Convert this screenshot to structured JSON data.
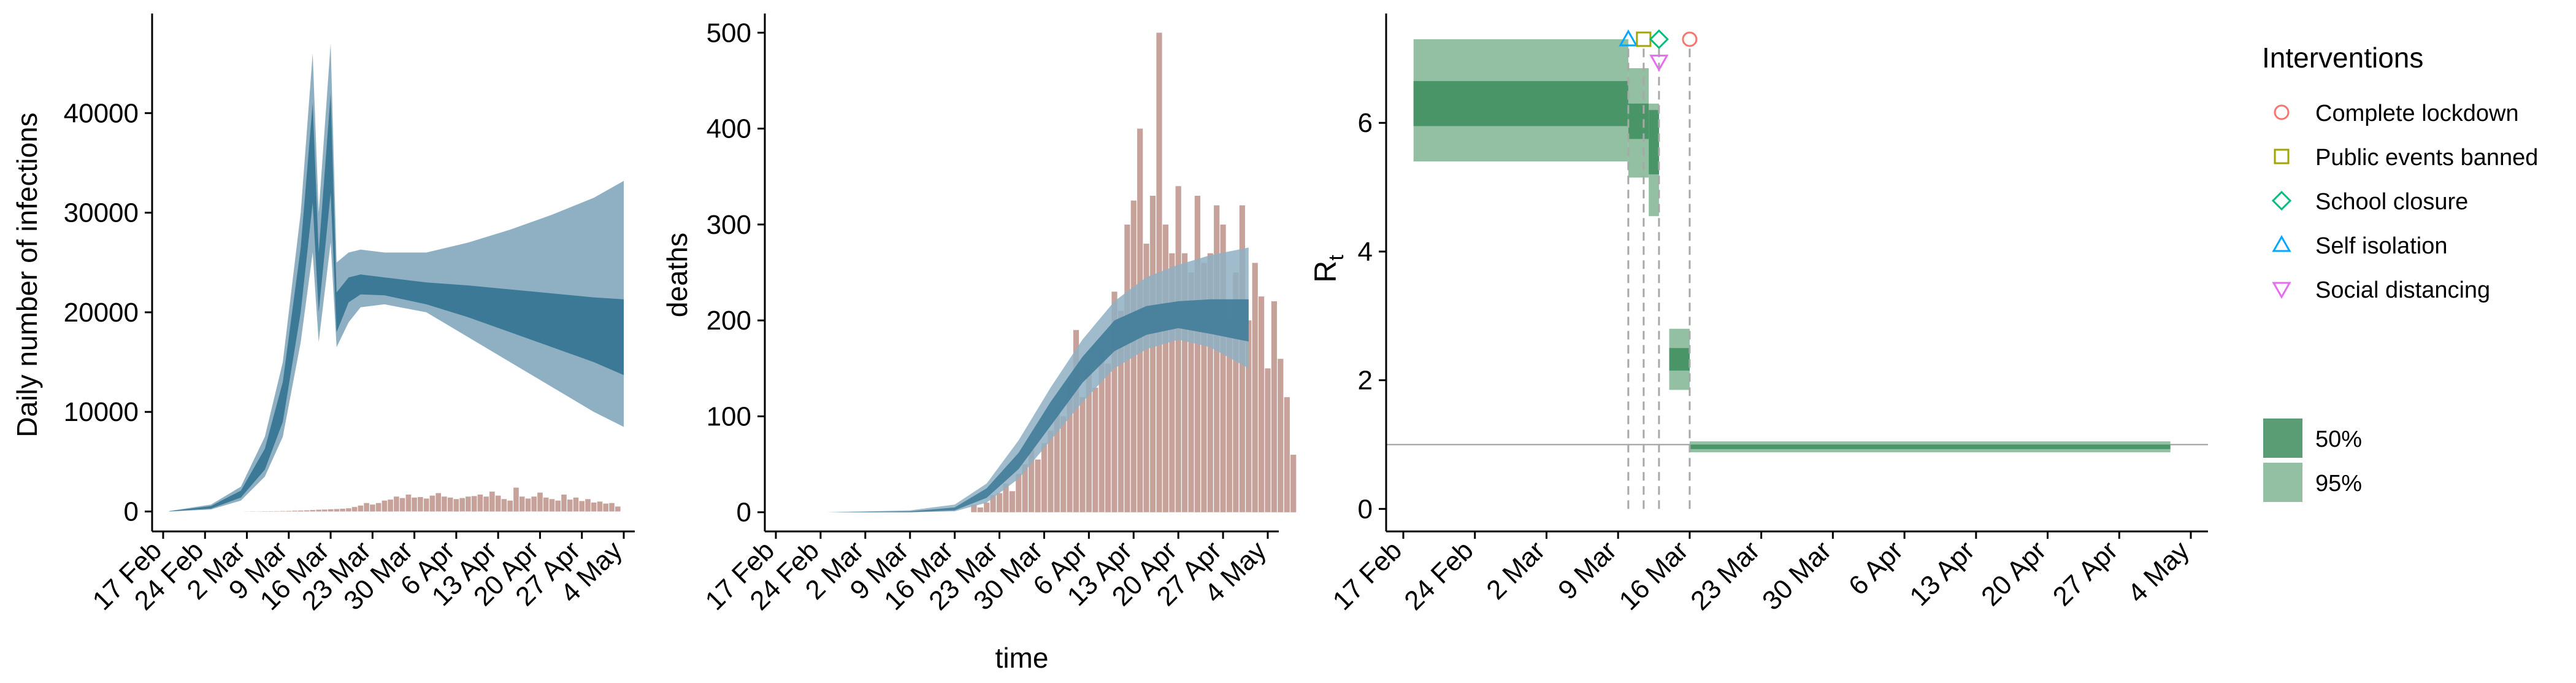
{
  "chart_data": [
    {
      "id": "infections",
      "type": "area",
      "ylabel": "Daily number of infections",
      "xlabel": "",
      "ylim": [
        -2000,
        50000
      ],
      "yticks": [
        0,
        10000,
        20000,
        30000,
        40000
      ],
      "x_start": "2020-02-17",
      "x_end": "2020-05-04",
      "xtick_labels": [
        "17 Feb",
        "24 Feb",
        "2 Mar",
        "9 Mar",
        "16 Mar",
        "23 Mar",
        "30 Mar",
        "6 Apr",
        "13 Apr",
        "20 Apr",
        "27 Apr",
        "4 May"
      ],
      "band95": [
        {
          "date": "2020-02-18",
          "low": 0,
          "high": 50
        },
        {
          "date": "2020-02-25",
          "low": 200,
          "high": 700
        },
        {
          "date": "2020-03-01",
          "low": 1100,
          "high": 2500
        },
        {
          "date": "2020-03-05",
          "low": 3500,
          "high": 7500
        },
        {
          "date": "2020-03-08",
          "low": 7500,
          "high": 15000
        },
        {
          "date": "2020-03-11",
          "low": 17000,
          "high": 30000
        },
        {
          "date": "2020-03-13",
          "low": 26000,
          "high": 46000
        },
        {
          "date": "2020-03-14",
          "low": 17000,
          "high": 30000
        },
        {
          "date": "2020-03-16",
          "low": 27000,
          "high": 47000
        },
        {
          "date": "2020-03-17",
          "low": 16500,
          "high": 25000
        },
        {
          "date": "2020-03-19",
          "low": 19000,
          "high": 26000
        },
        {
          "date": "2020-03-21",
          "low": 20500,
          "high": 26300
        },
        {
          "date": "2020-03-25",
          "low": 20800,
          "high": 26000
        },
        {
          "date": "2020-04-01",
          "low": 20000,
          "high": 26000
        },
        {
          "date": "2020-04-08",
          "low": 17500,
          "high": 27000
        },
        {
          "date": "2020-04-15",
          "low": 15000,
          "high": 28300
        },
        {
          "date": "2020-04-22",
          "low": 12500,
          "high": 29800
        },
        {
          "date": "2020-04-29",
          "low": 10000,
          "high": 31500
        },
        {
          "date": "2020-05-04",
          "low": 8500,
          "high": 33200
        }
      ],
      "band50": [
        {
          "date": "2020-02-18",
          "low": 0,
          "high": 30
        },
        {
          "date": "2020-02-25",
          "low": 300,
          "high": 550
        },
        {
          "date": "2020-03-01",
          "low": 1400,
          "high": 2100
        },
        {
          "date": "2020-03-05",
          "low": 4200,
          "high": 6300
        },
        {
          "date": "2020-03-08",
          "low": 9000,
          "high": 13000
        },
        {
          "date": "2020-03-11",
          "low": 20000,
          "high": 26500
        },
        {
          "date": "2020-03-13",
          "low": 31000,
          "high": 41000
        },
        {
          "date": "2020-03-14",
          "low": 20000,
          "high": 26000
        },
        {
          "date": "2020-03-16",
          "low": 32000,
          "high": 42000
        },
        {
          "date": "2020-03-17",
          "low": 18000,
          "high": 22000
        },
        {
          "date": "2020-03-19",
          "low": 21000,
          "high": 23500
        },
        {
          "date": "2020-03-21",
          "low": 21800,
          "high": 23800
        },
        {
          "date": "2020-03-25",
          "low": 21700,
          "high": 23500
        },
        {
          "date": "2020-04-01",
          "low": 20800,
          "high": 23000
        },
        {
          "date": "2020-04-08",
          "low": 19500,
          "high": 22700
        },
        {
          "date": "2020-04-15",
          "low": 18000,
          "high": 22300
        },
        {
          "date": "2020-04-22",
          "low": 16500,
          "high": 21900
        },
        {
          "date": "2020-04-29",
          "low": 15000,
          "high": 21500
        },
        {
          "date": "2020-05-04",
          "low": 13700,
          "high": 21300
        }
      ],
      "bars": {
        "start": "2020-03-02",
        "values": [
          10,
          20,
          20,
          30,
          30,
          40,
          50,
          60,
          80,
          100,
          120,
          150,
          180,
          200,
          230,
          250,
          280,
          320,
          450,
          600,
          850,
          700,
          850,
          1100,
          1200,
          1500,
          1350,
          1700,
          1400,
          1450,
          1300,
          1600,
          1850,
          1500,
          1400,
          1250,
          1350,
          1500,
          1550,
          1700,
          1500,
          2000,
          1600,
          1250,
          1100,
          2400,
          1500,
          1300,
          1500,
          1900,
          1400,
          1250,
          1100,
          1700,
          1200,
          1400,
          1050,
          1250,
          900,
          1000,
          800,
          850,
          500
        ]
      },
      "colors": {
        "band95": "#8fb0c3",
        "band50": "#3c7996",
        "bars": "#c6a29b"
      }
    },
    {
      "id": "deaths",
      "type": "bar",
      "ylabel": "deaths",
      "xlabel": "time",
      "ylim": [
        -20,
        520
      ],
      "yticks": [
        0,
        100,
        200,
        300,
        400,
        500
      ],
      "x_start": "2020-02-17",
      "x_end": "2020-05-04",
      "xtick_labels": [
        "17 Feb",
        "24 Feb",
        "2 Mar",
        "9 Mar",
        "16 Mar",
        "23 Mar",
        "30 Mar",
        "6 Apr",
        "13 Apr",
        "20 Apr",
        "27 Apr",
        "4 May"
      ],
      "bars": {
        "start": "2020-03-19",
        "values": [
          8,
          5,
          10,
          18,
          20,
          30,
          22,
          40,
          50,
          65,
          55,
          72,
          85,
          110,
          100,
          140,
          190,
          120,
          150,
          130,
          170,
          155,
          230,
          210,
          300,
          325,
          400,
          280,
          330,
          500,
          300,
          270,
          340,
          270,
          250,
          330,
          260,
          270,
          320,
          300,
          200,
          250,
          320,
          200,
          260,
          225,
          150,
          220,
          160,
          120,
          60
        ]
      },
      "band95": [
        {
          "date": "2020-02-25",
          "low": 0,
          "high": 0
        },
        {
          "date": "2020-03-09",
          "low": 0,
          "high": 2
        },
        {
          "date": "2020-03-16",
          "low": 1,
          "high": 8
        },
        {
          "date": "2020-03-21",
          "low": 10,
          "high": 30
        },
        {
          "date": "2020-03-26",
          "low": 35,
          "high": 75
        },
        {
          "date": "2020-03-31",
          "low": 75,
          "high": 130
        },
        {
          "date": "2020-04-05",
          "low": 115,
          "high": 180
        },
        {
          "date": "2020-04-10",
          "low": 150,
          "high": 220
        },
        {
          "date": "2020-04-15",
          "low": 170,
          "high": 245
        },
        {
          "date": "2020-04-20",
          "low": 180,
          "high": 258
        },
        {
          "date": "2020-04-25",
          "low": 172,
          "high": 268
        },
        {
          "date": "2020-05-01",
          "low": 150,
          "high": 276
        }
      ],
      "band50": [
        {
          "date": "2020-02-25",
          "low": 0,
          "high": 0
        },
        {
          "date": "2020-03-09",
          "low": 0,
          "high": 1
        },
        {
          "date": "2020-03-16",
          "low": 2,
          "high": 5
        },
        {
          "date": "2020-03-21",
          "low": 15,
          "high": 25
        },
        {
          "date": "2020-03-26",
          "low": 45,
          "high": 62
        },
        {
          "date": "2020-03-31",
          "low": 90,
          "high": 115
        },
        {
          "date": "2020-04-05",
          "low": 135,
          "high": 162
        },
        {
          "date": "2020-04-10",
          "low": 168,
          "high": 200
        },
        {
          "date": "2020-04-15",
          "low": 185,
          "high": 215
        },
        {
          "date": "2020-04-20",
          "low": 192,
          "high": 220
        },
        {
          "date": "2020-04-25",
          "low": 186,
          "high": 222
        },
        {
          "date": "2020-05-01",
          "low": 178,
          "high": 222
        }
      ],
      "colors": {
        "band95": "#8fb0c3",
        "band50": "#3c7996",
        "bars": "#c6a29b"
      }
    },
    {
      "id": "rt",
      "type": "area",
      "ylabel": "R",
      "ylabel_sub": "t",
      "xlabel": "",
      "ylim": [
        -0.35,
        7.7
      ],
      "yticks": [
        0,
        2,
        4,
        6
      ],
      "x_start": "2020-02-17",
      "x_end": "2020-05-04",
      "xtick_labels": [
        "17 Feb",
        "24 Feb",
        "2 Mar",
        "9 Mar",
        "16 Mar",
        "23 Mar",
        "30 Mar",
        "6 Apr",
        "13 Apr",
        "20 Apr",
        "27 Apr",
        "4 May"
      ],
      "reference_line": 1,
      "steps": [
        {
          "from": "2020-02-18",
          "to": "2020-03-10",
          "ci95": [
            5.4,
            7.3
          ],
          "ci50": [
            5.95,
            6.65
          ]
        },
        {
          "from": "2020-03-10",
          "to": "2020-03-12",
          "ci95": [
            5.15,
            6.85
          ],
          "ci50": [
            5.75,
            6.3
          ]
        },
        {
          "from": "2020-03-12",
          "to": "2020-03-13",
          "ci95": [
            4.55,
            6.3
          ],
          "ci50": [
            5.2,
            6.2
          ]
        },
        {
          "from": "2020-03-14",
          "to": "2020-03-16",
          "ci95": [
            1.85,
            2.8
          ],
          "ci50": [
            2.15,
            2.5
          ]
        },
        {
          "from": "2020-03-16",
          "to": "2020-05-02",
          "ci95": [
            0.88,
            1.05
          ],
          "ci50": [
            0.93,
            1.0
          ]
        }
      ],
      "interventions": [
        {
          "name": "Self isolation",
          "date": "2020-03-10",
          "marker": "triangle-up",
          "color": "#00a9ff",
          "y": 7.3
        },
        {
          "name": "Public events banned",
          "date": "2020-03-11.5",
          "marker": "square",
          "color": "#a3a500",
          "y": 7.3
        },
        {
          "name": "School closure",
          "date": "2020-03-13",
          "marker": "diamond",
          "color": "#00bf7d",
          "y": 7.3
        },
        {
          "name": "Social distancing",
          "date": "2020-03-13",
          "marker": "triangle-down",
          "color": "#e76bf3",
          "y": 6.95
        },
        {
          "name": "Complete lockdown",
          "date": "2020-03-16",
          "marker": "circle",
          "color": "#f8766d",
          "y": 7.3
        }
      ],
      "colors": {
        "ci95": "#93bfa2",
        "ci50": "#4a9568"
      }
    }
  ],
  "legend": {
    "title": "Interventions",
    "items": [
      {
        "label": "Complete lockdown",
        "marker": "circle",
        "color": "#f8766d"
      },
      {
        "label": "Public events banned",
        "marker": "square",
        "color": "#a3a500"
      },
      {
        "label": "School closure",
        "marker": "diamond",
        "color": "#00bf7d"
      },
      {
        "label": "Self isolation",
        "marker": "triangle-up",
        "color": "#00a9ff"
      },
      {
        "label": "Social distancing",
        "marker": "triangle-down",
        "color": "#e76bf3"
      }
    ],
    "ci_items": [
      {
        "label": "50%",
        "color": "#5a9c74"
      },
      {
        "label": "95%",
        "color": "#93bfa2"
      }
    ]
  }
}
